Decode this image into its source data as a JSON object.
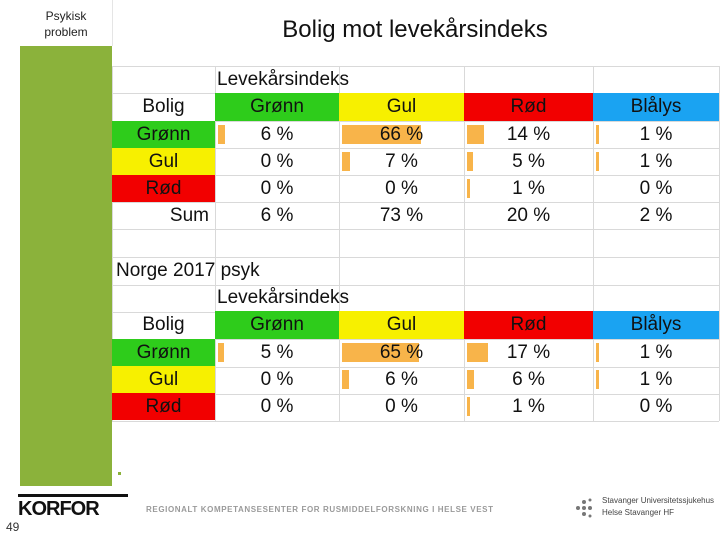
{
  "sidebar": {
    "label_line1": "Psykisk",
    "label_line2": "problem"
  },
  "title": "Bolig mot levekårsindeks",
  "colors": {
    "green": "#2ecc1b",
    "yellow": "#f7f000",
    "red": "#f20000",
    "blue": "#1aa3f2",
    "bar": "#f8b44a",
    "sidebar": "#8bb23b"
  },
  "table1": {
    "index_label": "Levekårsindeks",
    "corner_label": "Bolig",
    "col_headers": [
      "Grønn",
      "Gul",
      "Rød",
      "Blålys"
    ],
    "rows": [
      {
        "label": "Grønn",
        "values": [
          "6 %",
          "66 %",
          "14 %",
          "1 %"
        ],
        "bars": [
          6,
          66,
          14,
          1
        ]
      },
      {
        "label": "Gul",
        "values": [
          "0 %",
          "7 %",
          "5 %",
          "1 %"
        ],
        "bars": [
          0,
          7,
          5,
          1
        ]
      },
      {
        "label": "Rød",
        "values": [
          "0 %",
          "0 %",
          "1 %",
          "0 %"
        ],
        "bars": [
          0,
          0,
          1,
          0
        ]
      }
    ],
    "sum_label": "Sum",
    "sum_values": [
      "6 %",
      "73 %",
      "20 %",
      "2 %"
    ]
  },
  "table2": {
    "section_label": "Norge 2017 psyk",
    "index_label": "Levekårsindeks",
    "corner_label": "Bolig",
    "col_headers": [
      "Grønn",
      "Gul",
      "Rød",
      "Blålys"
    ],
    "rows": [
      {
        "label": "Grønn",
        "values": [
          "5 %",
          "65 %",
          "17 %",
          "1 %"
        ],
        "bars": [
          5,
          65,
          17,
          1
        ]
      },
      {
        "label": "Gul",
        "values": [
          "0 %",
          "6 %",
          "6 %",
          "1 %"
        ],
        "bars": [
          0,
          6,
          6,
          1
        ]
      },
      {
        "label": "Rød",
        "values": [
          "0 %",
          "0 %",
          "1 %",
          "0 %"
        ],
        "bars": [
          0,
          0,
          1,
          0
        ]
      }
    ]
  },
  "footer": {
    "page_number": "49",
    "logo_text": "KORFOR",
    "center_text": "REGIONALT KOMPETANSESENTER FOR RUSMIDDELFORSKNING I HELSE VEST",
    "hospital_name": "Stavanger Universitetssjukehus",
    "hospital_sub": "Helse Stavanger HF"
  }
}
